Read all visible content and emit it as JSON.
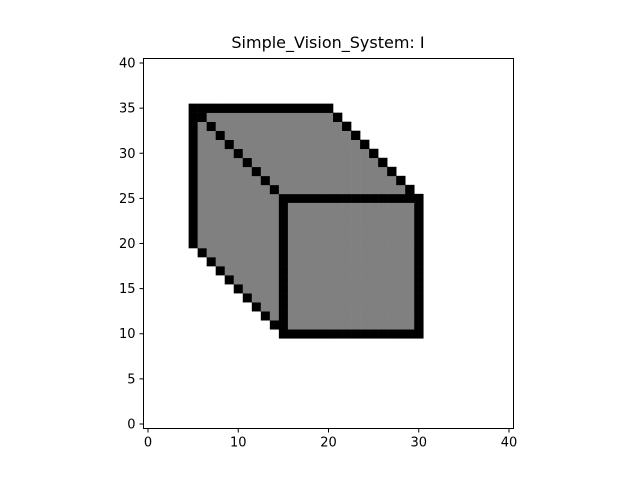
{
  "window": {
    "title": "Simple_Vision_System: I"
  },
  "chart_data": {
    "type": "heatmap",
    "title": "Simple_Vision_System: I",
    "xlabel": "",
    "ylabel": "",
    "xlim": [
      -0.5,
      40.5
    ],
    "ylim": [
      -0.5,
      40.5
    ],
    "x_ticks": [
      "0",
      "10",
      "20",
      "30",
      "40"
    ],
    "y_ticks": [
      "0",
      "5",
      "10",
      "15",
      "20",
      "25",
      "30",
      "35",
      "40"
    ],
    "grid": false,
    "legend": "none",
    "colors": {
      "background": "#ffffff",
      "face": "#808080",
      "edge": "#000000"
    },
    "description_shape": "cube",
    "front_face": {
      "x_range": [
        15,
        30
      ],
      "y_range": [
        10,
        25
      ]
    },
    "top_edge": {
      "x_range": [
        5,
        20
      ],
      "y": 35
    },
    "left_edge": {
      "x": 5,
      "y_range": [
        20,
        35
      ]
    },
    "diagonals": [
      {
        "from": [
          5,
          35
        ],
        "to": [
          15,
          25
        ]
      },
      {
        "from": [
          20,
          35
        ],
        "to": [
          30,
          25
        ]
      },
      {
        "from": [
          5,
          20
        ],
        "to": [
          15,
          10
        ]
      }
    ]
  }
}
